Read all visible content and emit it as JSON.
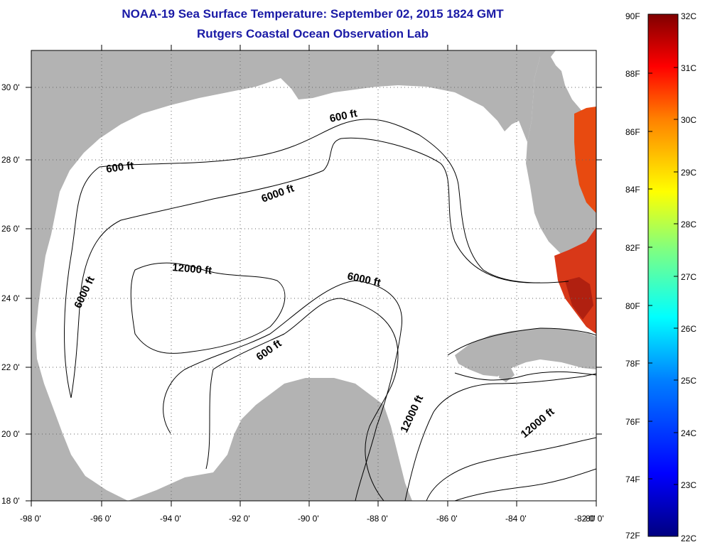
{
  "header": {
    "title": "NOAA-19 Sea Surface Temperature:  September 02, 2015 1824 GMT",
    "subtitle": "Rutgers Coastal Ocean Observation Lab"
  },
  "map": {
    "lat_labels": [
      "30 0'",
      "28 0'",
      "26 0'",
      "24 0'",
      "22 0'",
      "20 0'",
      "18 0'"
    ],
    "lon_labels": [
      "-98 0'",
      "-96 0'",
      "-94 0'",
      "-92 0'",
      "-90 0'",
      "-88 0'",
      "-86 0'",
      "-84 0'",
      "-82 0'",
      "-80 0'"
    ],
    "contour_labels": [
      "600 ft",
      "600 ft",
      "6000 ft",
      "12000 ft",
      "6000 ft",
      "6000 ft",
      "600 ft",
      "12000 ft",
      "12000 ft"
    ],
    "land_color": "#b3b3b3",
    "water_color": "#ffffff"
  },
  "colorbar": {
    "f_labels": [
      "90F",
      "88F",
      "86F",
      "84F",
      "82F",
      "80F",
      "78F",
      "76F",
      "74F",
      "72F"
    ],
    "c_labels": [
      "32C",
      "31C",
      "30C",
      "29C",
      "28C",
      "27C",
      "26C",
      "25C",
      "24C",
      "23C",
      "22C"
    ],
    "colors": [
      "#000080",
      "#0000ff",
      "#0080ff",
      "#00ffff",
      "#80ff80",
      "#ffff00",
      "#ff8000",
      "#ff0000",
      "#800000"
    ]
  }
}
